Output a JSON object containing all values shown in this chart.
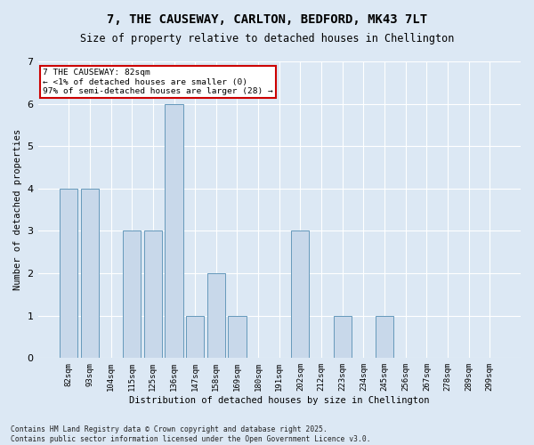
{
  "title_line1": "7, THE CAUSEWAY, CARLTON, BEDFORD, MK43 7LT",
  "title_line2": "Size of property relative to detached houses in Chellington",
  "xlabel": "Distribution of detached houses by size in Chellington",
  "ylabel": "Number of detached properties",
  "categories": [
    "82sqm",
    "93sqm",
    "104sqm",
    "115sqm",
    "125sqm",
    "136sqm",
    "147sqm",
    "158sqm",
    "169sqm",
    "180sqm",
    "191sqm",
    "202sqm",
    "212sqm",
    "223sqm",
    "234sqm",
    "245sqm",
    "256sqm",
    "267sqm",
    "278sqm",
    "289sqm",
    "299sqm"
  ],
  "values": [
    4,
    4,
    0,
    3,
    3,
    6,
    1,
    2,
    1,
    0,
    0,
    3,
    0,
    1,
    0,
    1,
    0,
    0,
    0,
    0,
    0
  ],
  "bar_color": "#c8d8ea",
  "bar_edge_color": "#6699bb",
  "annotation_box_text": "7 THE CAUSEWAY: 82sqm\n← <1% of detached houses are smaller (0)\n97% of semi-detached houses are larger (28) →",
  "annotation_box_color": "#ffffff",
  "annotation_box_edge_color": "#cc0000",
  "background_color": "#dce8f4",
  "plot_bg_color": "#dce8f4",
  "footer_text": "Contains HM Land Registry data © Crown copyright and database right 2025.\nContains public sector information licensed under the Open Government Licence v3.0.",
  "ylim": [
    0,
    7
  ],
  "yticks": [
    0,
    1,
    2,
    3,
    4,
    5,
    6,
    7
  ]
}
